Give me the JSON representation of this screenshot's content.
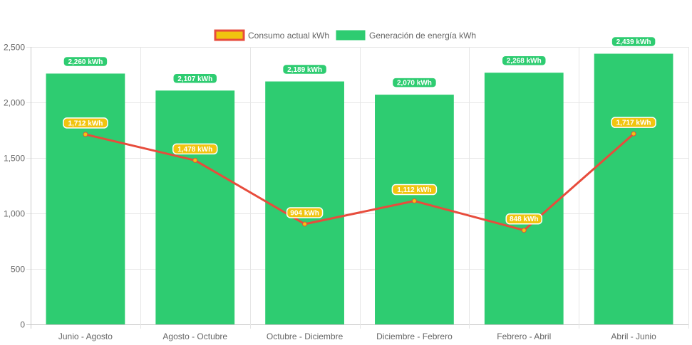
{
  "chart_data": {
    "type": "bar",
    "title": "",
    "xlabel": "",
    "ylabel": "",
    "ylim": [
      0,
      2500
    ],
    "yticks": [
      0,
      500,
      1000,
      1500,
      2000,
      2500
    ],
    "ytick_labels": [
      "0",
      "500",
      "1,000",
      "1,500",
      "2,000",
      "2,500"
    ],
    "grid": true,
    "legend_position": "top-center",
    "categories": [
      "Junio - Agosto",
      "Agosto - Octubre",
      "Octubre - Diciembre",
      "Diciembre - Febrero",
      "Febrero - Abril",
      "Abril - Junio"
    ],
    "series": [
      {
        "name": "Consumo actual kWh",
        "type": "line",
        "color": "#e74c3c",
        "label_color": "#f1c40f",
        "values": [
          1712,
          1478,
          904,
          1112,
          848,
          1717
        ],
        "labels": [
          "1,712 kWh",
          "1,478 kWh",
          "904 kWh",
          "1,112 kWh",
          "848 kWh",
          "1,717 kWh"
        ]
      },
      {
        "name": "Generación de energía kWh",
        "type": "bar",
        "color": "#2ecc71",
        "label_color": "#2ecc71",
        "values": [
          2260,
          2107,
          2189,
          2070,
          2268,
          2439
        ],
        "labels": [
          "2,260 kWh",
          "2,107 kWh",
          "2,189 kWh",
          "2,070 kWh",
          "2,268 kWh",
          "2,439 kWh"
        ]
      }
    ]
  }
}
